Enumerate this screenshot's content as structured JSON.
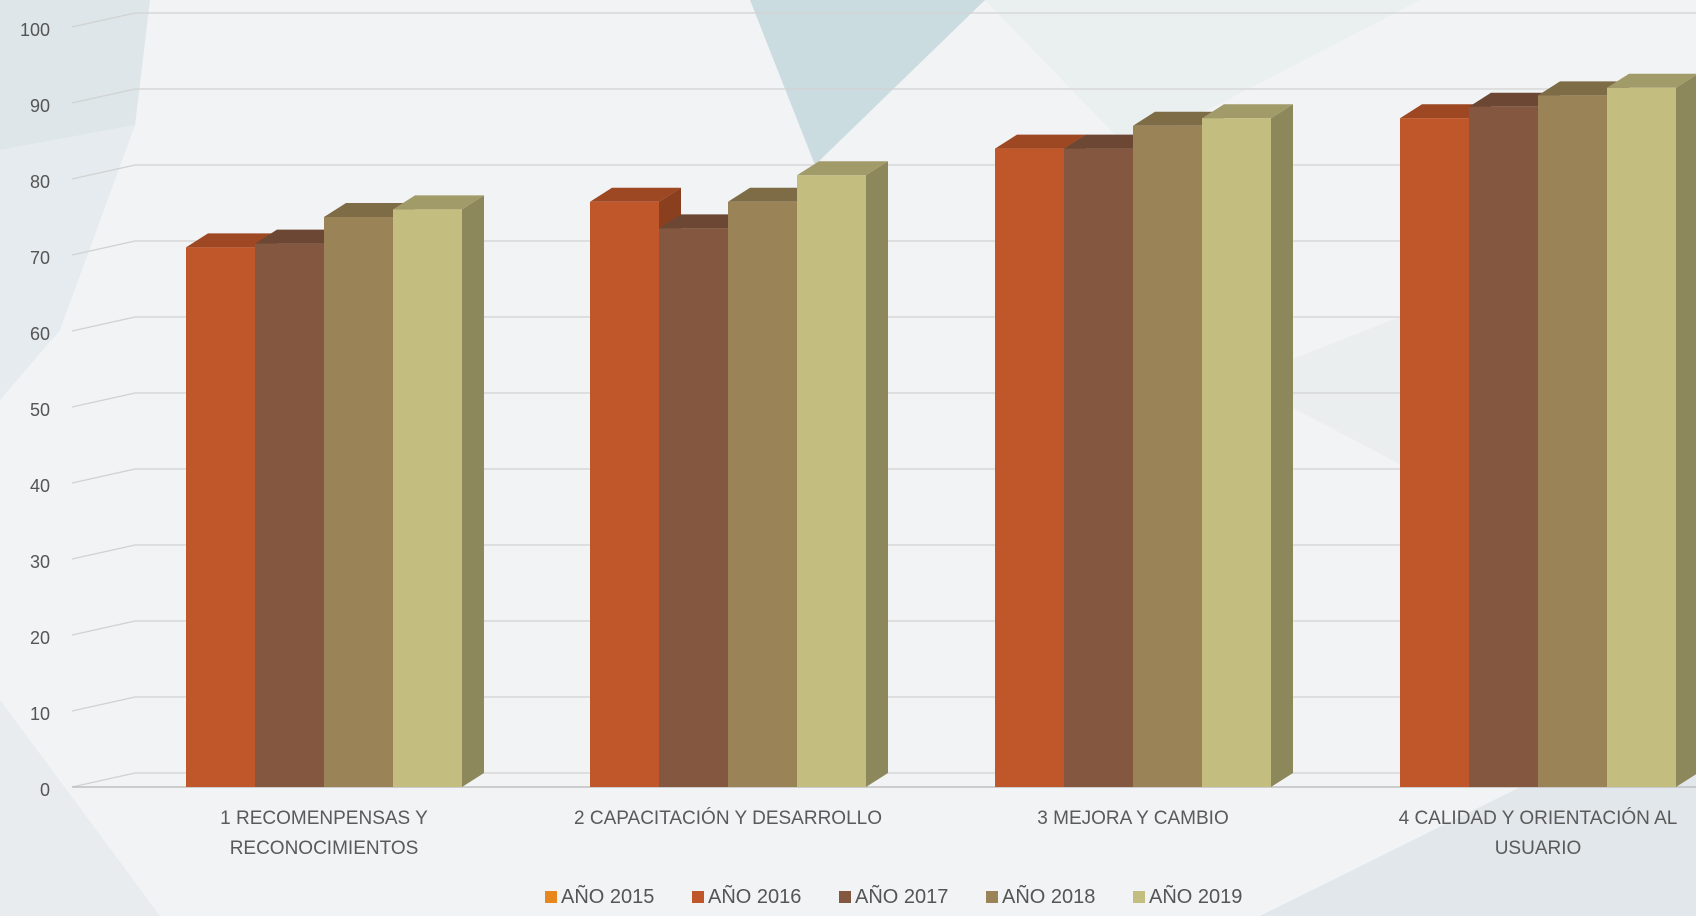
{
  "chart_data": {
    "type": "bar",
    "title": "",
    "xlabel": "",
    "ylabel": "",
    "ylim": [
      0,
      100
    ],
    "yticks": [
      0,
      10,
      20,
      30,
      40,
      50,
      60,
      70,
      80,
      90,
      100
    ],
    "categories": [
      [
        "1 RECOMENPENSAS Y",
        "RECONOCIMIENTOS"
      ],
      [
        "2 CAPACITACIÓN Y DESARROLLO"
      ],
      [
        "3 MEJORA Y CAMBIO"
      ],
      [
        "4 CALIDAD Y ORIENTACIÓN AL",
        "USUARIO"
      ]
    ],
    "series": [
      {
        "name": "AÑO 2015",
        "color": "#e8871e",
        "values": [
          null,
          null,
          null,
          null
        ]
      },
      {
        "name": "AÑO 2016",
        "color": "#c0572b",
        "values": [
          71,
          77,
          84,
          88
        ]
      },
      {
        "name": "AÑO 2017",
        "color": "#835740",
        "values": [
          71.5,
          73.5,
          84,
          89.5
        ]
      },
      {
        "name": "AÑO 2018",
        "color": "#9a8457",
        "values": [
          75,
          77,
          87,
          91
        ]
      },
      {
        "name": "AÑO 2019",
        "color": "#c4bd80",
        "values": [
          76,
          80.5,
          88,
          92
        ]
      }
    ],
    "grid": true,
    "legend": "bottom"
  }
}
